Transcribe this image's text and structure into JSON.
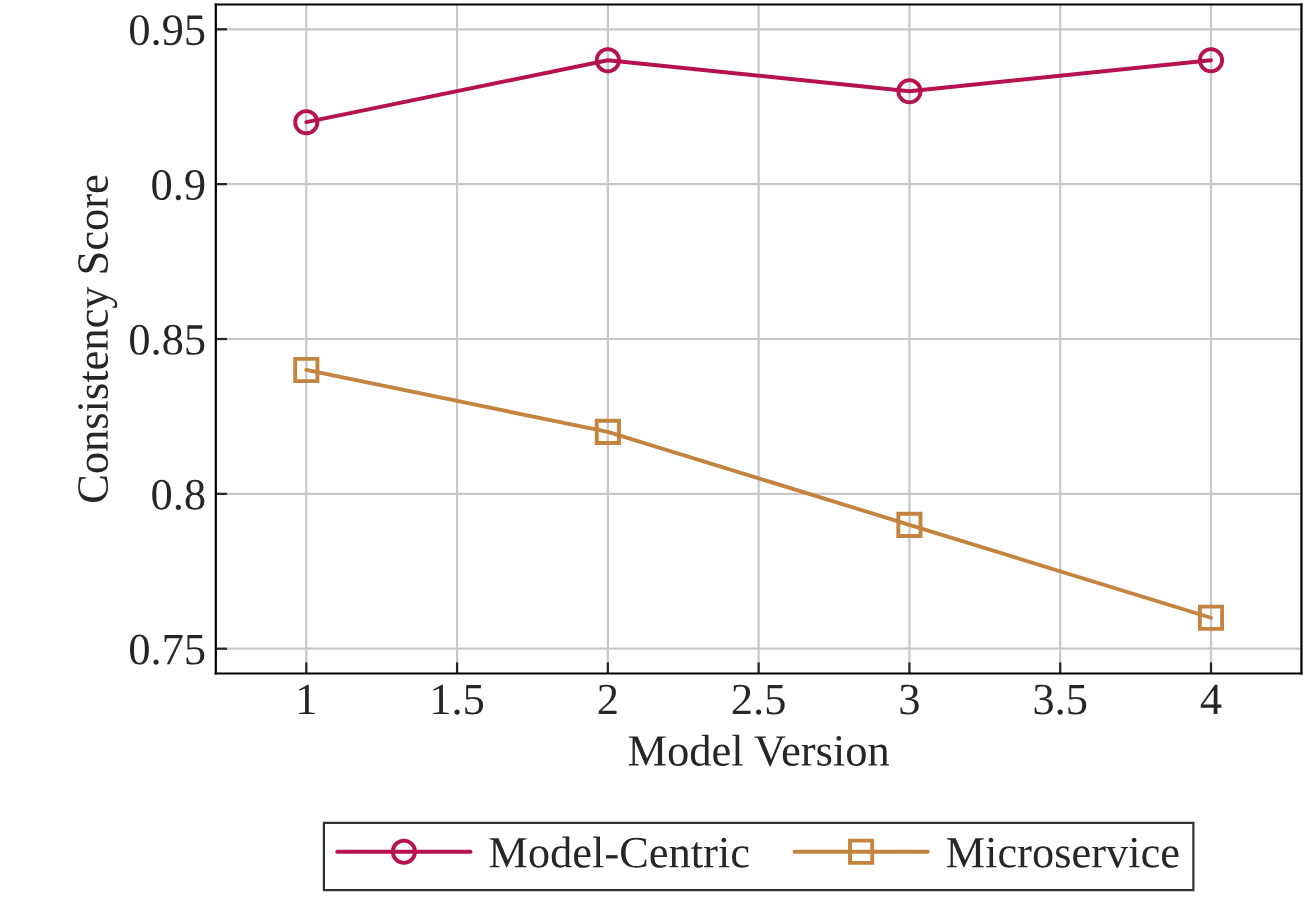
{
  "chart_data": {
    "type": "line",
    "xlabel": "Model Version",
    "ylabel": "Consistency Score",
    "x": [
      1,
      2,
      3,
      4
    ],
    "series": [
      {
        "name": "Model-Centric",
        "color": "#b5124f",
        "marker": "circle",
        "values": [
          0.92,
          0.94,
          0.93,
          0.94
        ]
      },
      {
        "name": "Microservice",
        "color": "#c4843f",
        "marker": "square",
        "values": [
          0.84,
          0.82,
          0.79,
          0.76
        ]
      }
    ],
    "xlim": [
      0.7,
      4.3
    ],
    "xticks": [
      1,
      1.5,
      2,
      2.5,
      3,
      3.5,
      4
    ],
    "ylim": [
      0.742,
      0.958
    ],
    "yticks": [
      {
        "value": 0.75,
        "label": "0.75"
      },
      {
        "value": 0.8,
        "label": "0.8"
      },
      {
        "value": 0.85,
        "label": "0.85"
      },
      {
        "value": 0.9,
        "label": "0.9"
      },
      {
        "value": 0.95,
        "label": "0.95"
      }
    ],
    "grid": true,
    "legend": "bottom",
    "line_style": "solid"
  }
}
